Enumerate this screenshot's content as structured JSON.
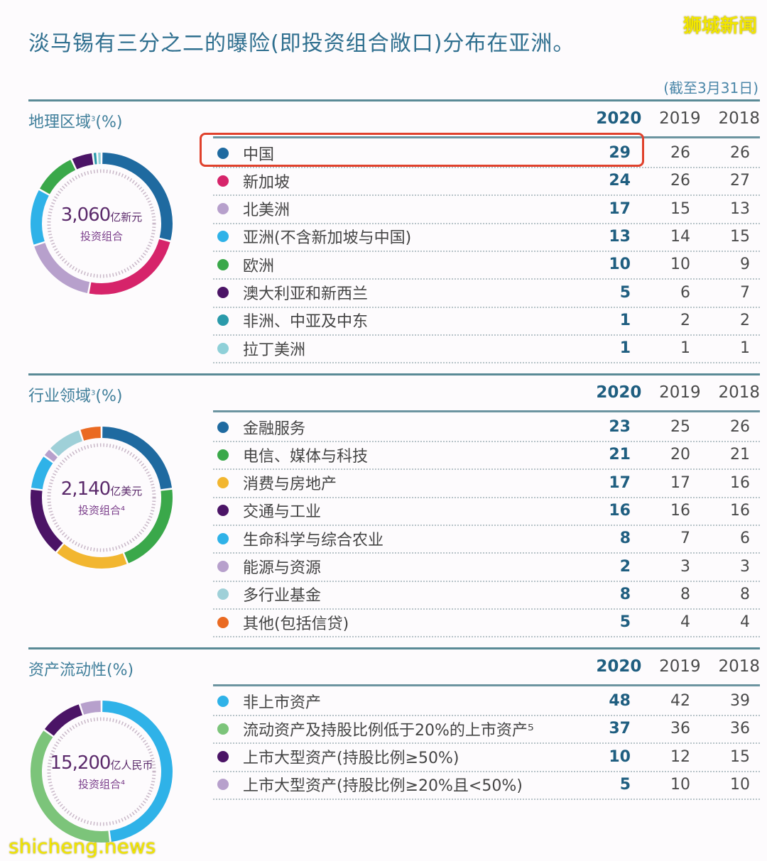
{
  "headline": "淡马锡有三分之二的曝险(即投资组合敞口)分布在亚洲。",
  "watermark_top": "狮城新闻",
  "watermark_bottom": "shicheng.news",
  "as_of": "(截至3月31日)",
  "years": [
    "2020",
    "2019",
    "2018"
  ],
  "sections": [
    {
      "title": "地理区域",
      "title_sup": "3",
      "title_suffix": "(%)",
      "donut_amount": "3,060",
      "donut_unit": "亿新元",
      "donut_sub": "投资组合",
      "rows": [
        {
          "label": "中国",
          "color": "#1f6aa0",
          "v2020": "29",
          "v2019": "26",
          "v2018": "26",
          "highlighted": true
        },
        {
          "label": "新加坡",
          "color": "#d6246a",
          "v2020": "24",
          "v2019": "26",
          "v2018": "27"
        },
        {
          "label": "北美洲",
          "color": "#b7a0cc",
          "v2020": "17",
          "v2019": "15",
          "v2018": "13"
        },
        {
          "label": "亚洲(不含新加坡与中国)",
          "color": "#2fb2e8",
          "v2020": "13",
          "v2019": "14",
          "v2018": "15"
        },
        {
          "label": "欧洲",
          "color": "#3aa84a",
          "v2020": "10",
          "v2019": "10",
          "v2018": "9"
        },
        {
          "label": "澳大利亚和新西兰",
          "color": "#4b1466",
          "v2020": "5",
          "v2019": "6",
          "v2018": "7"
        },
        {
          "label": "非洲、中亚及中东",
          "color": "#2a9aaa",
          "v2020": "1",
          "v2019": "2",
          "v2018": "2"
        },
        {
          "label": "拉丁美洲",
          "color": "#8fd0d8",
          "v2020": "1",
          "v2019": "1",
          "v2018": "1"
        }
      ]
    },
    {
      "title": "行业领域",
      "title_sup": "3",
      "title_suffix": "(%)",
      "donut_amount": "2,140",
      "donut_unit": "亿美元",
      "donut_sub": "投资组合⁴",
      "rows": [
        {
          "label": "金融服务",
          "color": "#1f6aa0",
          "v2020": "23",
          "v2019": "25",
          "v2018": "26"
        },
        {
          "label": "电信、媒体与科技",
          "color": "#3aa84a",
          "v2020": "21",
          "v2019": "20",
          "v2018": "21"
        },
        {
          "label": "消费与房地产",
          "color": "#f2b630",
          "v2020": "17",
          "v2019": "17",
          "v2018": "16"
        },
        {
          "label": "交通与工业",
          "color": "#4b1466",
          "v2020": "16",
          "v2019": "16",
          "v2018": "16"
        },
        {
          "label": "生命科学与综合农业",
          "color": "#2fb2e8",
          "v2020": "8",
          "v2019": "7",
          "v2018": "6"
        },
        {
          "label": "能源与资源",
          "color": "#b7a0cc",
          "v2020": "2",
          "v2019": "3",
          "v2018": "3"
        },
        {
          "label": "多行业基金",
          "color": "#9fd0d8",
          "v2020": "8",
          "v2019": "8",
          "v2018": "8"
        },
        {
          "label": "其他(包括信贷)",
          "color": "#ea6a22",
          "v2020": "5",
          "v2019": "4",
          "v2018": "4"
        }
      ]
    },
    {
      "title": "资产流动性",
      "title_sup": "",
      "title_suffix": "(%)",
      "donut_amount": "15,200",
      "donut_unit": "亿人民币",
      "donut_sub": "投资组合⁴",
      "rows": [
        {
          "label": "非上市资产",
          "color": "#2fb2e8",
          "v2020": "48",
          "v2019": "42",
          "v2018": "39"
        },
        {
          "label": "流动资产及持股比例低于20%的上市资产⁵",
          "color": "#7cc47a",
          "v2020": "37",
          "v2019": "36",
          "v2018": "36"
        },
        {
          "label": "上市大型资产(持股比例≥50%)",
          "color": "#4b1466",
          "v2020": "10",
          "v2019": "12",
          "v2018": "15"
        },
        {
          "label": "上市大型资产(持股比例≥20%且<50%)",
          "color": "#b7a0cc",
          "v2020": "5",
          "v2019": "10",
          "v2018": "10"
        }
      ]
    }
  ],
  "chart_data": [
    {
      "type": "pie",
      "title": "地理区域(%)",
      "center_label": "3,060亿新元 投资组合",
      "categories": [
        "中国",
        "新加坡",
        "北美洲",
        "亚洲(不含新加坡与中国)",
        "欧洲",
        "澳大利亚和新西兰",
        "非洲、中亚及中东",
        "拉丁美洲"
      ],
      "series": [
        {
          "name": "2020",
          "values": [
            29,
            24,
            17,
            13,
            10,
            5,
            1,
            1
          ]
        },
        {
          "name": "2019",
          "values": [
            26,
            26,
            15,
            14,
            10,
            6,
            2,
            1
          ]
        },
        {
          "name": "2018",
          "values": [
            26,
            27,
            13,
            15,
            9,
            7,
            2,
            1
          ]
        }
      ]
    },
    {
      "type": "pie",
      "title": "行业领域(%)",
      "center_label": "2,140亿美元 投资组合",
      "categories": [
        "金融服务",
        "电信、媒体与科技",
        "消费与房地产",
        "交通与工业",
        "生命科学与综合农业",
        "能源与资源",
        "多行业基金",
        "其他(包括信贷)"
      ],
      "series": [
        {
          "name": "2020",
          "values": [
            23,
            21,
            17,
            16,
            8,
            2,
            8,
            5
          ]
        },
        {
          "name": "2019",
          "values": [
            25,
            20,
            17,
            16,
            7,
            3,
            8,
            4
          ]
        },
        {
          "name": "2018",
          "values": [
            26,
            21,
            16,
            16,
            6,
            3,
            8,
            4
          ]
        }
      ]
    },
    {
      "type": "pie",
      "title": "资产流动性(%)",
      "center_label": "15,200亿人民币 投资组合",
      "categories": [
        "非上市资产",
        "流动资产及持股比例低于20%的上市资产",
        "上市大型资产(持股比例≥50%)",
        "上市大型资产(持股比例≥20%且<50%)"
      ],
      "series": [
        {
          "name": "2020",
          "values": [
            48,
            37,
            10,
            5
          ]
        },
        {
          "name": "2019",
          "values": [
            42,
            36,
            12,
            10
          ]
        },
        {
          "name": "2018",
          "values": [
            39,
            36,
            15,
            10
          ]
        }
      ]
    }
  ]
}
